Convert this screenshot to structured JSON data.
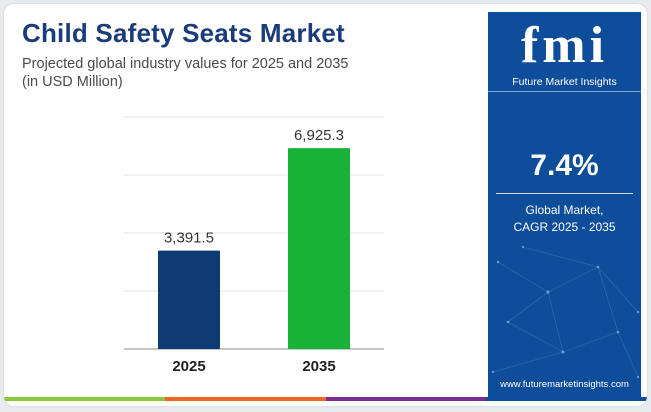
{
  "header": {
    "title": "Child Safety Seats Market",
    "subtitle_line1": "Projected global industry values for 2025 and 2035",
    "subtitle_line2": "(in USD Million)"
  },
  "chart_data": {
    "type": "bar",
    "categories": [
      "2025",
      "2035"
    ],
    "values": [
      3391.5,
      6925.3
    ],
    "value_labels": [
      "3,391.5",
      "6,925.3"
    ],
    "bar_colors": [
      "#0e3a73",
      "#17b338"
    ],
    "ylim": [
      0,
      8000
    ],
    "grid": true,
    "xlabel": "",
    "ylabel": ""
  },
  "side_panel": {
    "logo": "fmi",
    "logo_subtitle": "Future Market Insights",
    "cagr_value": "7.4%",
    "cagr_label_line1": "Global Market,",
    "cagr_label_line2": "CAGR 2025 - 2035",
    "website": "www.futuremarketinsights.com",
    "background_color": "#0e4d9a"
  },
  "footer": {
    "stripe_colors": [
      "#8cc63f",
      "#f26522",
      "#7b2d8e",
      "#0e4d9a"
    ]
  }
}
